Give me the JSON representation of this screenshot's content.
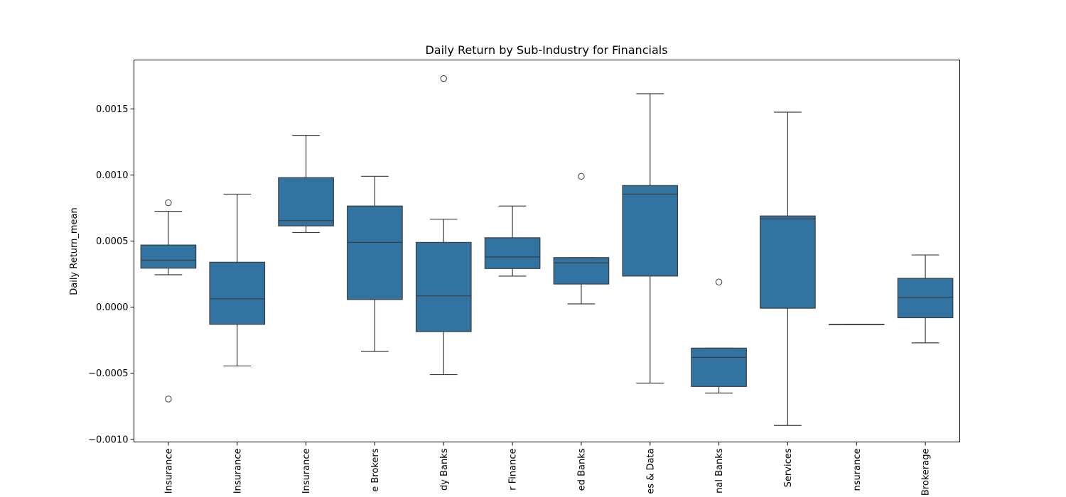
{
  "chart_data": {
    "type": "box",
    "title": "Daily Return by Sub-Industry for Financials",
    "xlabel": "",
    "ylabel": "Daily Return_mean",
    "ylim": [
      -0.00102,
      0.00187
    ],
    "yticks": [
      -0.001,
      -0.0005,
      0.0,
      0.0005,
      0.001,
      0.0015
    ],
    "ytick_labels": [
      "−0.0010",
      "−0.0005",
      "0.0000",
      "0.0005",
      "0.0010",
      "0.0015"
    ],
    "grid": false,
    "box_color": "#3274a1",
    "categories": [
      "Insurance",
      "Insurance",
      "Insurance",
      "e Brokers",
      "dy Banks",
      "r Finance",
      "ed Banks",
      "es & Data",
      "nal Banks",
      "Services",
      "nsurance",
      "Brokerage"
    ],
    "boxes": [
      {
        "whisker_low": 0.000245,
        "q1": 0.000295,
        "median": 0.000355,
        "q3": 0.00047,
        "whisker_high": 0.000725,
        "outliers": [
          0.00079,
          -0.000695
        ]
      },
      {
        "whisker_low": -0.000445,
        "q1": -0.00013,
        "median": 6.3e-05,
        "q3": 0.00034,
        "whisker_high": 0.000855,
        "outliers": []
      },
      {
        "whisker_low": 0.000565,
        "q1": 0.000615,
        "median": 0.000655,
        "q3": 0.00098,
        "whisker_high": 0.0013,
        "outliers": []
      },
      {
        "whisker_low": -0.000335,
        "q1": 5.8e-05,
        "median": 0.00049,
        "q3": 0.000765,
        "whisker_high": 0.00099,
        "outliers": []
      },
      {
        "whisker_low": -0.00051,
        "q1": -0.000185,
        "median": 8.5e-05,
        "q3": 0.00049,
        "whisker_high": 0.000665,
        "outliers": [
          0.00173
        ]
      },
      {
        "whisker_low": 0.000235,
        "q1": 0.000292,
        "median": 0.00038,
        "q3": 0.000525,
        "whisker_high": 0.000765,
        "outliers": []
      },
      {
        "whisker_low": 2.5e-05,
        "q1": 0.000175,
        "median": 0.000335,
        "q3": 0.000375,
        "whisker_high": 0.000375,
        "outliers": [
          0.00099
        ]
      },
      {
        "whisker_low": -0.000575,
        "q1": 0.000235,
        "median": 0.000855,
        "q3": 0.00092,
        "whisker_high": 0.001615,
        "outliers": []
      },
      {
        "whisker_low": -0.00065,
        "q1": -0.0006,
        "median": -0.00038,
        "q3": -0.00031,
        "whisker_high": -0.00031,
        "outliers": [
          0.00019
        ]
      },
      {
        "whisker_low": -0.000895,
        "q1": -8e-06,
        "median": 0.000668,
        "q3": 0.00069,
        "whisker_high": 0.001475,
        "outliers": []
      },
      {
        "whisker_low": -0.00013,
        "q1": -0.00013,
        "median": -0.00013,
        "q3": -0.00013,
        "whisker_high": -0.00013,
        "outliers": []
      },
      {
        "whisker_low": -0.00027,
        "q1": -8e-05,
        "median": 7.5e-05,
        "q3": 0.000218,
        "whisker_high": 0.000395,
        "outliers": []
      }
    ]
  }
}
